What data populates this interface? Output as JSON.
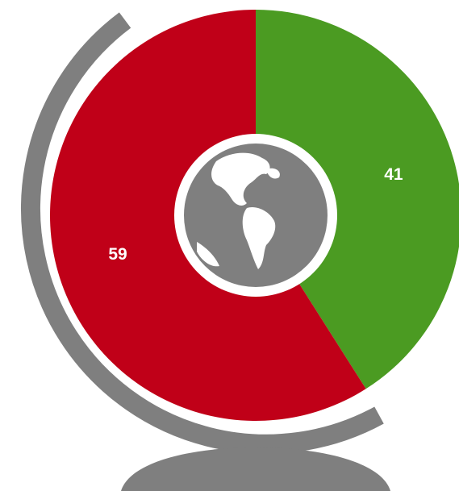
{
  "chart_data": {
    "type": "pie",
    "values": [
      41,
      59
    ],
    "colors": [
      "#4b9b22",
      "#c00018"
    ]
  }
}
